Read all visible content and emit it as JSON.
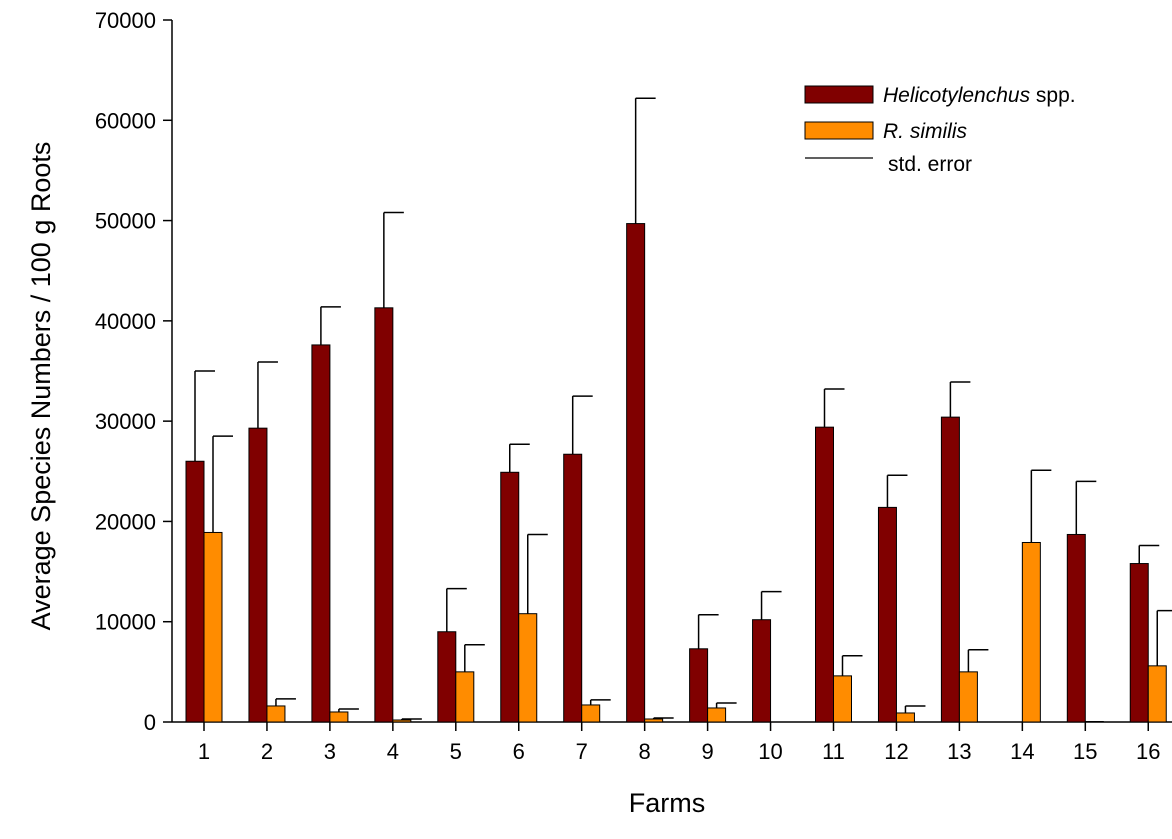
{
  "chart_data": {
    "type": "bar",
    "xlabel": "Farms",
    "ylabel": "Average Species Numbers / 100 g Roots",
    "ylim": [
      0,
      70000
    ],
    "yticks": [
      0,
      10000,
      20000,
      30000,
      40000,
      50000,
      60000,
      70000
    ],
    "categories": [
      "1",
      "2",
      "3",
      "4",
      "5",
      "6",
      "7",
      "8",
      "9",
      "10",
      "11",
      "12",
      "13",
      "14",
      "15",
      "16"
    ],
    "series": [
      {
        "name_prefix": "Helicotylenchus",
        "name_suffix": " spp.",
        "color": "#800000",
        "values": [
          26000,
          29300,
          37600,
          41300,
          9000,
          24900,
          26700,
          49700,
          7300,
          10200,
          29400,
          21400,
          30400,
          0,
          18700,
          15800
        ],
        "errors": [
          9000,
          6600,
          3800,
          9500,
          4300,
          2800,
          5800,
          12500,
          3400,
          2800,
          3800,
          3200,
          3500,
          0,
          5300,
          1800
        ]
      },
      {
        "name_prefix": "R. similis",
        "name_suffix": "",
        "color": "#ff8c00",
        "values": [
          18900,
          1600,
          1000,
          200,
          5000,
          10800,
          1700,
          300,
          1400,
          0,
          4600,
          900,
          5000,
          17900,
          50,
          5600
        ],
        "errors": [
          9600,
          700,
          300,
          100,
          2700,
          7900,
          500,
          100,
          500,
          0,
          2000,
          700,
          2200,
          7200,
          0,
          5500
        ]
      }
    ],
    "legend": {
      "position": "top-right",
      "error_label": "std. error"
    }
  }
}
